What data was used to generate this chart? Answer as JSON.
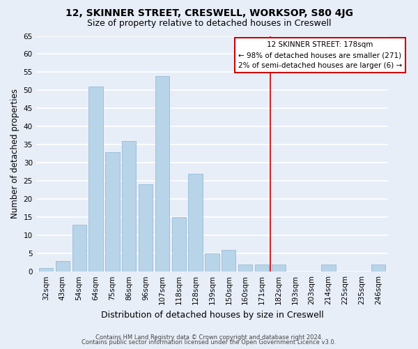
{
  "title": "12, SKINNER STREET, CRESWELL, WORKSOP, S80 4JG",
  "subtitle": "Size of property relative to detached houses in Creswell",
  "xlabel": "Distribution of detached houses by size in Creswell",
  "ylabel": "Number of detached properties",
  "categories": [
    "32sqm",
    "43sqm",
    "54sqm",
    "64sqm",
    "75sqm",
    "86sqm",
    "96sqm",
    "107sqm",
    "118sqm",
    "128sqm",
    "139sqm",
    "150sqm",
    "160sqm",
    "171sqm",
    "182sqm",
    "193sqm",
    "203sqm",
    "214sqm",
    "225sqm",
    "235sqm",
    "246sqm"
  ],
  "values": [
    1,
    3,
    13,
    51,
    33,
    36,
    24,
    54,
    15,
    27,
    5,
    6,
    2,
    2,
    2,
    0,
    0,
    2,
    0,
    0,
    2
  ],
  "bar_color": "#b8d4e8",
  "bar_edge_color": "#8ab4d4",
  "ylim": [
    0,
    65
  ],
  "yticks": [
    0,
    5,
    10,
    15,
    20,
    25,
    30,
    35,
    40,
    45,
    50,
    55,
    60,
    65
  ],
  "vline_x_index": 13.5,
  "annotation_text": "12 SKINNER STREET: 178sqm\n← 98% of detached houses are smaller (271)\n2% of semi-detached houses are larger (6) →",
  "annotation_box_color": "#ffffff",
  "annotation_box_edge_color": "#cc0000",
  "footer_line1": "Contains HM Land Registry data © Crown copyright and database right 2024.",
  "footer_line2": "Contains public sector information licensed under the Open Government Licence v3.0.",
  "background_color": "#e8eef8",
  "grid_color": "#ffffff",
  "title_fontsize": 10,
  "subtitle_fontsize": 9,
  "tick_fontsize": 7.5,
  "ylabel_fontsize": 8.5,
  "xlabel_fontsize": 9,
  "footer_fontsize": 6,
  "annotation_fontsize": 7.5
}
